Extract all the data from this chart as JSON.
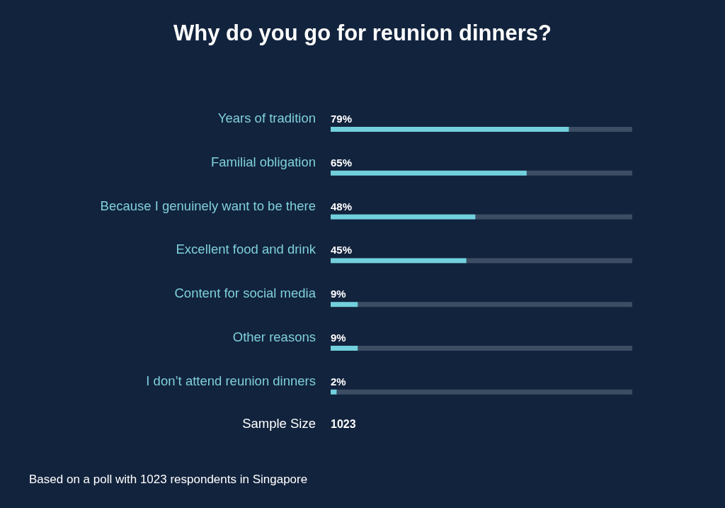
{
  "chart_data": {
    "type": "bar",
    "orientation": "horizontal",
    "title": "Why do you go for reunion dinners?",
    "categories": [
      "Years of tradition",
      "Familial obligation",
      "Because I genuinely want to be there",
      "Excellent food and drink",
      "Content for social media",
      "Other reasons",
      "I don’t attend reunion dinners"
    ],
    "values": [
      79,
      65,
      48,
      45,
      9,
      9,
      2
    ],
    "value_labels": [
      "79%",
      "65%",
      "48%",
      "45%",
      "9%",
      "9%",
      "2%"
    ],
    "color": "#72d0dc",
    "xlim": [
      0,
      100
    ],
    "tick_labels": false,
    "annotations": [
      "Sample Size",
      "1023",
      "Based on a poll  with 1023 respondents in Singapore"
    ]
  }
}
